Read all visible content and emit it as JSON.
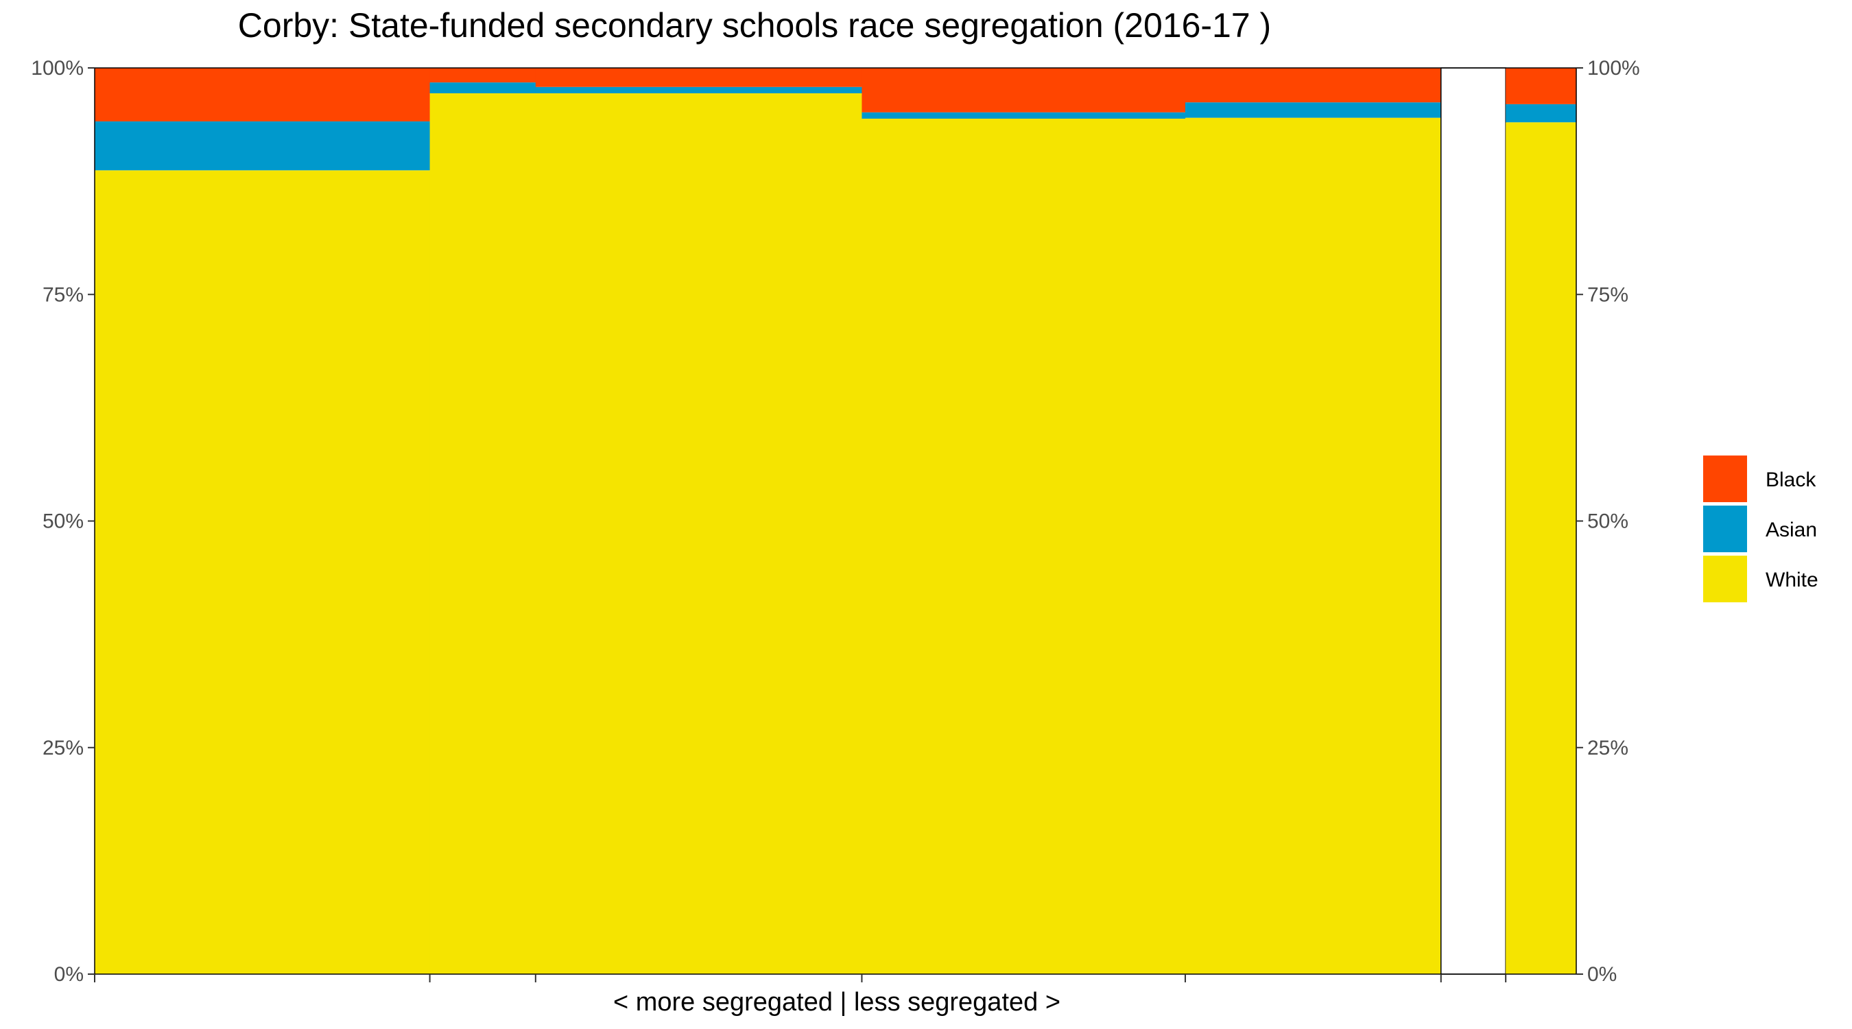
{
  "chart_data": {
    "type": "bar",
    "title": "Corby: State-funded secondary schools race segregation (2016-17 )",
    "xlabel": "< more segregated | less segregated >",
    "ylabel": "",
    "ylim": [
      0,
      1
    ],
    "y_tick_labels": [
      "0%",
      "25%",
      "50%",
      "75%",
      "100%"
    ],
    "y_tick_values": [
      0,
      0.25,
      0.5,
      0.75,
      1
    ],
    "stack_order_bottom_to_top": [
      "White",
      "Asian",
      "Black"
    ],
    "legend": {
      "placement": "right",
      "entries": [
        "Black",
        "Asian",
        "White"
      ]
    },
    "colors": {
      "Black": "#FF4500",
      "Asian": "#0099CC",
      "White": "#F5E400"
    },
    "segments": [
      {
        "share": 0.2262,
        "White": 0.887,
        "Asian": 0.054,
        "Black": 0.059
      },
      {
        "share": 0.0714,
        "White": 0.972,
        "Asian": 0.012,
        "Black": 0.016
      },
      {
        "share": 0.2202,
        "White": 0.972,
        "Asian": 0.007,
        "Black": 0.021
      },
      {
        "share": 0.2183,
        "White": 0.944,
        "Asian": 0.007,
        "Black": 0.049
      },
      {
        "share": 0.1726,
        "White": 0.945,
        "Asian": 0.017,
        "Black": 0.038
      },
      {
        "share": 0.0437,
        "White": 0,
        "Asian": 0,
        "Black": 0
      },
      {
        "share": 0.0476,
        "White": 0.94,
        "Asian": 0.02,
        "Black": 0.04
      }
    ],
    "grid": false
  }
}
